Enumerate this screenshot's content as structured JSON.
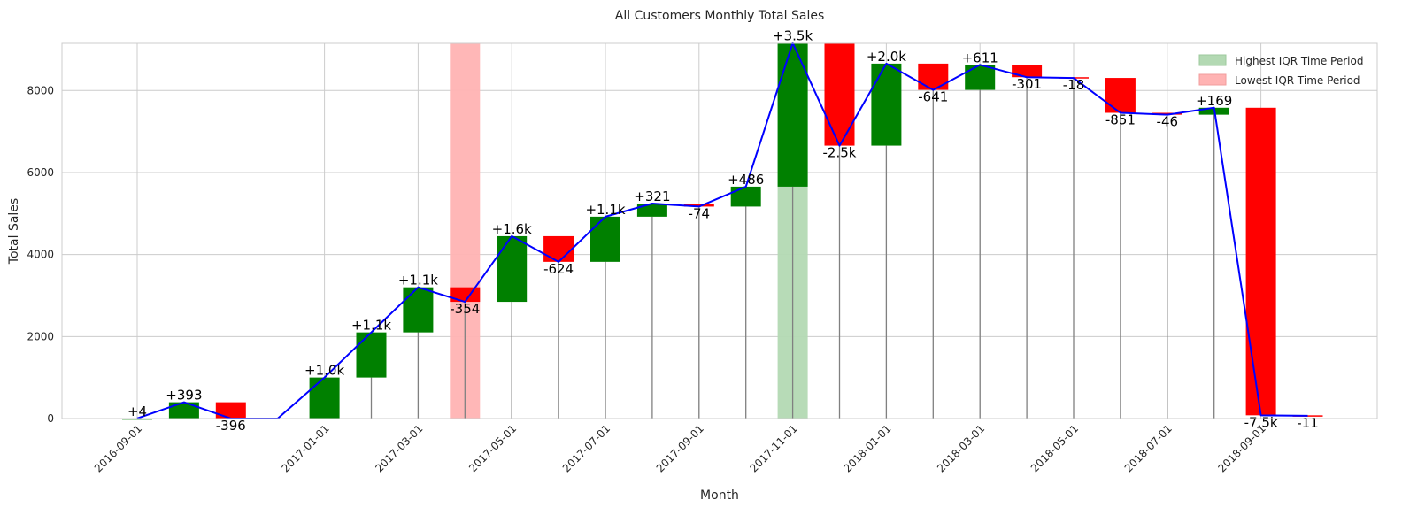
{
  "chart_data": {
    "type": "bar",
    "title": "All Customers Monthly Total Sales",
    "xlabel": "Month",
    "ylabel": "Total Sales",
    "ylim": [
      0,
      9150
    ],
    "yticks": [
      0,
      2000,
      4000,
      6000,
      8000
    ],
    "yticklabels": [
      "0",
      "2000",
      "4000",
      "6000",
      "8000"
    ],
    "xticklabels": [
      "2016-09-01",
      "2017-01-01",
      "2017-03-01",
      "2017-05-01",
      "2017-07-01",
      "2017-09-01",
      "2017-11-01",
      "2018-01-01",
      "2018-03-01",
      "2018-05-01",
      "2018-07-01",
      "2018-09-01"
    ],
    "tick_month_index": [
      0,
      4,
      6,
      8,
      10,
      12,
      14,
      16,
      18,
      20,
      22,
      24
    ],
    "grid": true,
    "legend_position": "top-right",
    "months": [
      "2016-09",
      "2016-10",
      "2016-11",
      "2016-12",
      "2017-01",
      "2017-02",
      "2017-03",
      "2017-04",
      "2017-05",
      "2017-06",
      "2017-07",
      "2017-08",
      "2017-09",
      "2017-10",
      "2017-11",
      "2017-12",
      "2018-01",
      "2018-02",
      "2018-03",
      "2018-04",
      "2018-05",
      "2018-06",
      "2018-07",
      "2018-08",
      "2018-09",
      "2018-10"
    ],
    "total_sales": [
      4,
      397,
      1,
      1,
      1001,
      2101,
      3201,
      2847,
      4447,
      3823,
      4923,
      5244,
      5170,
      5656,
      9156,
      6656,
      8656,
      8015,
      8626,
      8325,
      8307,
      7456,
      7410,
      7579,
      79,
      68
    ],
    "changes": [
      4,
      393,
      -396,
      0,
      1000,
      1100,
      1100,
      -354,
      1600,
      -624,
      1100,
      321,
      -74,
      486,
      3500,
      -2500,
      2000,
      -641,
      611,
      -301,
      -18,
      -851,
      -46,
      169,
      -7500,
      -11
    ],
    "change_labels": [
      "+4",
      "+393",
      "-396",
      "",
      "+1.0k",
      "+1.1k",
      "+1.1k",
      "-354",
      "+1.6k",
      "-624",
      "+1.1k",
      "+321",
      "-74",
      "+486",
      "+3.5k",
      "-2.5k",
      "+2.0k",
      "-641",
      "+611",
      "-301",
      "-18",
      "-851",
      "-46",
      "+169",
      "-7.5k",
      "-11"
    ],
    "highest_iqr_month": "2017-11",
    "lowest_iqr_month": "2017-04",
    "legend": [
      {
        "label": "Highest IQR Time Period",
        "color": "#b3d9b3"
      },
      {
        "label": "Lowest IQR Time Period",
        "color": "#ffb3b3"
      }
    ],
    "colors": {
      "increase": "#008000",
      "decrease": "#ff0000",
      "line": "#0000ff",
      "stem": "#808080"
    }
  }
}
